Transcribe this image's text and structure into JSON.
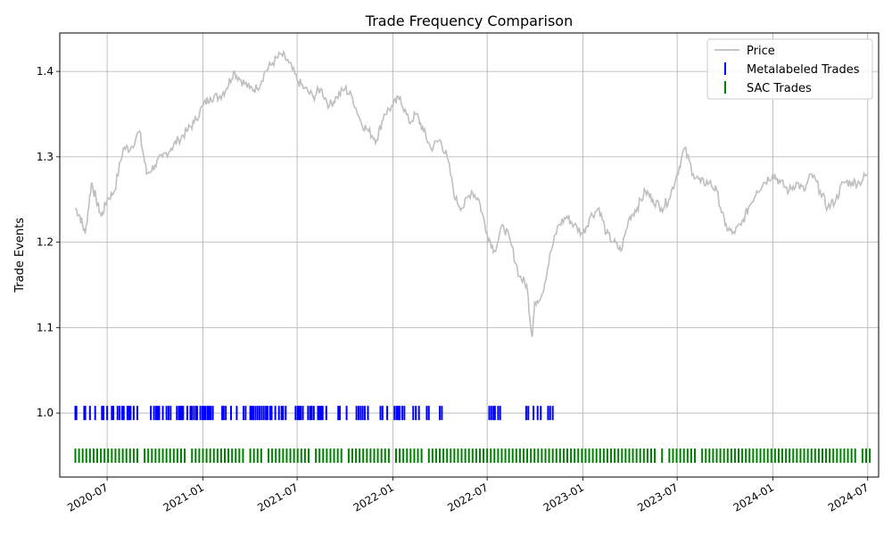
{
  "chart_data": {
    "type": "line",
    "title": "Trade Frequency Comparison",
    "xlabel": "",
    "ylabel": "Trade Events",
    "xlim": [
      "2020-04-01",
      "2024-07-22"
    ],
    "ylim": [
      0.925,
      1.445
    ],
    "x_ticks": [
      "2020-07",
      "2021-01",
      "2021-07",
      "2022-01",
      "2022-07",
      "2023-01",
      "2023-07",
      "2024-01",
      "2024-07"
    ],
    "y_ticks": [
      "1.0",
      "1.1",
      "1.2",
      "1.3",
      "1.4"
    ],
    "grid": true,
    "legend_position": "upper right",
    "series": [
      {
        "name": "Price",
        "kind": "line",
        "color": "#bfbfbf",
        "x": [
          "2020-05-01",
          "2020-05-10",
          "2020-05-20",
          "2020-06-01",
          "2020-06-10",
          "2020-06-20",
          "2020-07-01",
          "2020-07-15",
          "2020-08-01",
          "2020-08-15",
          "2020-09-01",
          "2020-09-15",
          "2020-10-01",
          "2020-10-15",
          "2020-11-01",
          "2020-11-15",
          "2020-12-01",
          "2020-12-15",
          "2021-01-01",
          "2021-01-15",
          "2021-02-01",
          "2021-02-15",
          "2021-03-01",
          "2021-03-15",
          "2021-04-01",
          "2021-04-15",
          "2021-05-01",
          "2021-05-15",
          "2021-06-01",
          "2021-06-15",
          "2021-07-01",
          "2021-07-15",
          "2021-08-01",
          "2021-08-15",
          "2021-09-01",
          "2021-09-15",
          "2021-10-01",
          "2021-10-15",
          "2021-11-01",
          "2021-11-15",
          "2021-12-01",
          "2021-12-15",
          "2022-01-01",
          "2022-01-15",
          "2022-02-01",
          "2022-02-15",
          "2022-03-01",
          "2022-03-15",
          "2022-04-01",
          "2022-04-15",
          "2022-05-01",
          "2022-05-15",
          "2022-06-01",
          "2022-06-15",
          "2022-07-01",
          "2022-07-15",
          "2022-08-01",
          "2022-08-15",
          "2022-09-01",
          "2022-09-15",
          "2022-09-25",
          "2022-10-01",
          "2022-10-15",
          "2022-11-01",
          "2022-11-15",
          "2022-12-01",
          "2022-12-15",
          "2023-01-01",
          "2023-01-15",
          "2023-02-01",
          "2023-02-15",
          "2023-03-01",
          "2023-03-15",
          "2023-04-01",
          "2023-04-15",
          "2023-05-01",
          "2023-05-15",
          "2023-06-01",
          "2023-06-15",
          "2023-07-01",
          "2023-07-15",
          "2023-08-01",
          "2023-08-15",
          "2023-09-01",
          "2023-09-15",
          "2023-10-01",
          "2023-10-15",
          "2023-11-01",
          "2023-11-15",
          "2023-12-01",
          "2023-12-15",
          "2024-01-01",
          "2024-01-15",
          "2024-02-01",
          "2024-02-15",
          "2024-03-01",
          "2024-03-15",
          "2024-04-01",
          "2024-04-15",
          "2024-05-01",
          "2024-05-15",
          "2024-06-01",
          "2024-06-15",
          "2024-07-01"
        ],
        "values": [
          1.24,
          1.23,
          1.21,
          1.27,
          1.25,
          1.23,
          1.25,
          1.26,
          1.31,
          1.31,
          1.33,
          1.28,
          1.29,
          1.3,
          1.31,
          1.32,
          1.33,
          1.34,
          1.36,
          1.37,
          1.37,
          1.38,
          1.4,
          1.39,
          1.38,
          1.38,
          1.4,
          1.41,
          1.42,
          1.41,
          1.39,
          1.38,
          1.37,
          1.38,
          1.36,
          1.37,
          1.38,
          1.37,
          1.34,
          1.33,
          1.32,
          1.35,
          1.36,
          1.37,
          1.34,
          1.35,
          1.33,
          1.31,
          1.32,
          1.3,
          1.25,
          1.24,
          1.26,
          1.25,
          1.21,
          1.19,
          1.22,
          1.2,
          1.16,
          1.15,
          1.09,
          1.13,
          1.14,
          1.19,
          1.22,
          1.23,
          1.22,
          1.21,
          1.23,
          1.24,
          1.21,
          1.2,
          1.19,
          1.23,
          1.24,
          1.26,
          1.25,
          1.24,
          1.25,
          1.28,
          1.31,
          1.28,
          1.27,
          1.27,
          1.26,
          1.22,
          1.21,
          1.22,
          1.24,
          1.26,
          1.27,
          1.28,
          1.27,
          1.26,
          1.27,
          1.26,
          1.28,
          1.26,
          1.24,
          1.25,
          1.27,
          1.27,
          1.27,
          1.28
        ]
      },
      {
        "name": "Metalabeled Trades",
        "kind": "events",
        "color": "#0000ff",
        "y": 1.0,
        "dates": [
          "2020-05-01",
          "2020-05-03",
          "2020-05-18",
          "2020-05-20",
          "2020-05-29",
          "2020-06-08",
          "2020-06-21",
          "2020-06-24",
          "2020-07-01",
          "2020-07-10",
          "2020-07-13",
          "2020-07-21",
          "2020-07-25",
          "2020-07-30",
          "2020-08-02",
          "2020-08-09",
          "2020-08-12",
          "2020-08-15",
          "2020-08-21",
          "2020-08-28",
          "2020-09-23",
          "2020-09-29",
          "2020-10-03",
          "2020-10-06",
          "2020-10-09",
          "2020-10-16",
          "2020-10-23",
          "2020-10-27",
          "2020-10-31",
          "2020-11-12",
          "2020-11-16",
          "2020-11-19",
          "2020-11-21",
          "2020-11-24",
          "2020-12-02",
          "2020-12-08",
          "2020-12-11",
          "2020-12-15",
          "2020-12-19",
          "2020-12-21",
          "2020-12-27",
          "2020-12-31",
          "2021-01-03",
          "2021-01-06",
          "2021-01-10",
          "2021-01-13",
          "2021-01-16",
          "2021-01-20",
          "2021-02-07",
          "2021-02-10",
          "2021-02-14",
          "2021-02-24",
          "2021-03-07",
          "2021-03-20",
          "2021-03-24",
          "2021-04-02",
          "2021-04-05",
          "2021-04-08",
          "2021-04-12",
          "2021-04-16",
          "2021-04-20",
          "2021-04-24",
          "2021-04-28",
          "2021-05-02",
          "2021-05-05",
          "2021-05-10",
          "2021-05-13",
          "2021-05-20",
          "2021-05-27",
          "2021-06-01",
          "2021-06-04",
          "2021-06-09",
          "2021-06-28",
          "2021-07-02",
          "2021-07-05",
          "2021-07-08",
          "2021-07-12",
          "2021-07-22",
          "2021-07-26",
          "2021-07-29",
          "2021-08-02",
          "2021-08-10",
          "2021-08-13",
          "2021-08-16",
          "2021-08-19",
          "2021-08-26",
          "2021-09-18",
          "2021-09-21",
          "2021-10-04",
          "2021-10-23",
          "2021-10-27",
          "2021-10-31",
          "2021-11-04",
          "2021-11-08",
          "2021-11-14",
          "2021-12-08",
          "2021-12-12",
          "2021-12-21",
          "2022-01-04",
          "2022-01-08",
          "2022-01-11",
          "2022-01-14",
          "2022-01-19",
          "2022-01-23",
          "2022-02-09",
          "2022-02-14",
          "2022-02-20",
          "2022-03-07",
          "2022-03-11",
          "2022-04-01",
          "2022-04-05",
          "2022-07-05",
          "2022-07-09",
          "2022-07-13",
          "2022-07-16",
          "2022-07-22",
          "2022-07-26",
          "2022-09-14",
          "2022-09-18",
          "2022-09-28",
          "2022-10-06",
          "2022-10-12",
          "2022-10-26",
          "2022-10-30",
          "2022-11-04"
        ]
      },
      {
        "name": "SAC Trades",
        "kind": "events",
        "color": "#008000",
        "y": 0.95,
        "dates": [
          "2020-05-01",
          "2020-05-08",
          "2020-05-15",
          "2020-05-22",
          "2020-05-29",
          "2020-06-05",
          "2020-06-12",
          "2020-06-19",
          "2020-06-26",
          "2020-07-03",
          "2020-07-10",
          "2020-07-17",
          "2020-07-24",
          "2020-07-31",
          "2020-08-07",
          "2020-08-14",
          "2020-08-21",
          "2020-08-28",
          "2020-09-11",
          "2020-09-18",
          "2020-09-25",
          "2020-10-02",
          "2020-10-09",
          "2020-10-16",
          "2020-10-23",
          "2020-10-30",
          "2020-11-06",
          "2020-11-13",
          "2020-11-20",
          "2020-11-27",
          "2020-12-11",
          "2020-12-18",
          "2020-12-25",
          "2021-01-01",
          "2021-01-08",
          "2021-01-15",
          "2021-01-22",
          "2021-01-29",
          "2021-02-05",
          "2021-02-12",
          "2021-02-19",
          "2021-02-26",
          "2021-03-05",
          "2021-03-12",
          "2021-03-19",
          "2021-04-02",
          "2021-04-09",
          "2021-04-16",
          "2021-04-23",
          "2021-05-07",
          "2021-05-14",
          "2021-05-21",
          "2021-05-28",
          "2021-06-04",
          "2021-06-11",
          "2021-06-18",
          "2021-06-25",
          "2021-07-02",
          "2021-07-09",
          "2021-07-16",
          "2021-07-23",
          "2021-08-06",
          "2021-08-13",
          "2021-08-20",
          "2021-08-27",
          "2021-09-03",
          "2021-09-10",
          "2021-09-17",
          "2021-09-24",
          "2021-10-08",
          "2021-10-15",
          "2021-10-22",
          "2021-10-29",
          "2021-11-05",
          "2021-11-12",
          "2021-11-19",
          "2021-11-26",
          "2021-12-03",
          "2021-12-10",
          "2021-12-17",
          "2021-12-24",
          "2022-01-07",
          "2022-01-14",
          "2022-01-21",
          "2022-01-28",
          "2022-02-04",
          "2022-02-11",
          "2022-02-18",
          "2022-02-25",
          "2022-03-11",
          "2022-03-18",
          "2022-03-25",
          "2022-04-01",
          "2022-04-08",
          "2022-04-15",
          "2022-04-22",
          "2022-04-29",
          "2022-05-06",
          "2022-05-13",
          "2022-05-20",
          "2022-05-27",
          "2022-06-03",
          "2022-06-10",
          "2022-06-17",
          "2022-06-24",
          "2022-07-01",
          "2022-07-08",
          "2022-07-15",
          "2022-07-22",
          "2022-07-29",
          "2022-08-05",
          "2022-08-12",
          "2022-08-19",
          "2022-08-26",
          "2022-09-02",
          "2022-09-09",
          "2022-09-16",
          "2022-09-23",
          "2022-09-30",
          "2022-10-07",
          "2022-10-14",
          "2022-10-21",
          "2022-10-28",
          "2022-11-04",
          "2022-11-11",
          "2022-11-18",
          "2022-11-25",
          "2022-12-02",
          "2022-12-09",
          "2022-12-16",
          "2022-12-23",
          "2022-12-30",
          "2023-01-06",
          "2023-01-13",
          "2023-01-20",
          "2023-01-27",
          "2023-02-03",
          "2023-02-10",
          "2023-02-17",
          "2023-02-24",
          "2023-03-03",
          "2023-03-10",
          "2023-03-17",
          "2023-03-24",
          "2023-03-31",
          "2023-04-07",
          "2023-04-14",
          "2023-04-21",
          "2023-04-28",
          "2023-05-05",
          "2023-05-12",
          "2023-05-19",
          "2023-06-02",
          "2023-06-16",
          "2023-06-23",
          "2023-06-30",
          "2023-07-07",
          "2023-07-14",
          "2023-07-21",
          "2023-07-28",
          "2023-08-04",
          "2023-08-18",
          "2023-08-25",
          "2023-09-01",
          "2023-09-08",
          "2023-09-15",
          "2023-09-22",
          "2023-09-29",
          "2023-10-06",
          "2023-10-13",
          "2023-10-20",
          "2023-10-27",
          "2023-11-03",
          "2023-11-10",
          "2023-11-17",
          "2023-11-24",
          "2023-12-01",
          "2023-12-08",
          "2023-12-15",
          "2023-12-22",
          "2023-12-29",
          "2024-01-05",
          "2024-01-12",
          "2024-01-19",
          "2024-01-26",
          "2024-02-02",
          "2024-02-09",
          "2024-02-16",
          "2024-02-23",
          "2024-03-01",
          "2024-03-08",
          "2024-03-15",
          "2024-03-22",
          "2024-03-29",
          "2024-04-05",
          "2024-04-12",
          "2024-04-19",
          "2024-04-26",
          "2024-05-03",
          "2024-05-10",
          "2024-05-17",
          "2024-05-24",
          "2024-05-31",
          "2024-06-07",
          "2024-06-21",
          "2024-06-28",
          "2024-07-05"
        ]
      }
    ]
  }
}
